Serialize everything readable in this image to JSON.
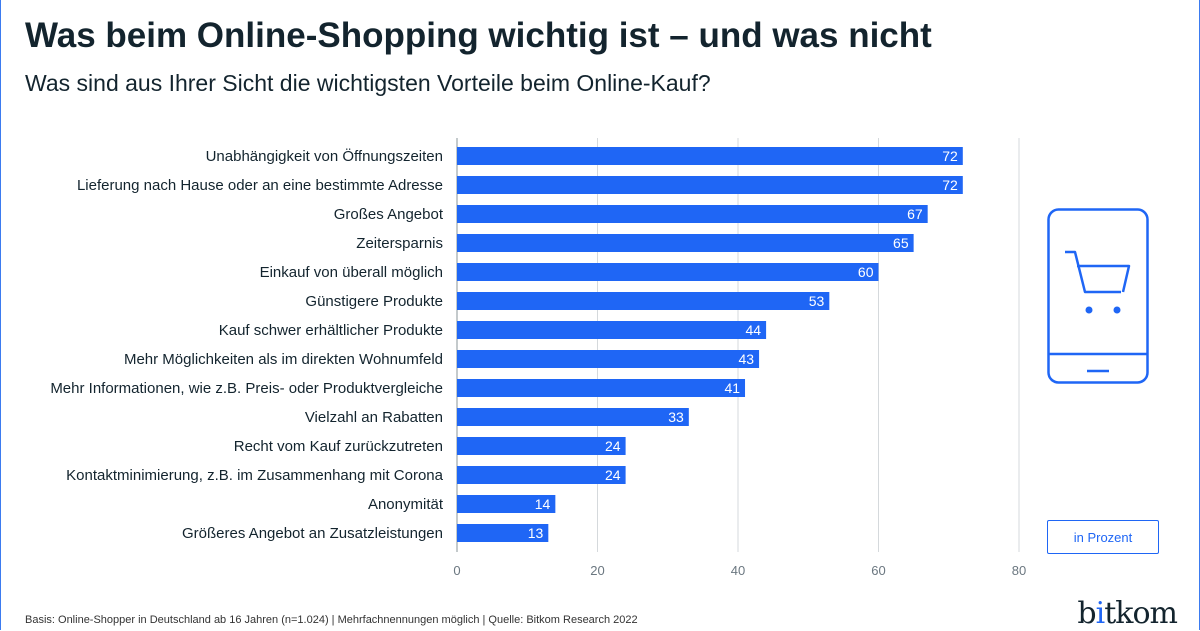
{
  "title": "Was beim Online-Shopping wichtig ist – und was nicht",
  "subtitle": "Was sind aus Ihrer Sicht die wichtigsten Vorteile beim Online-Kauf?",
  "unit_label": "in Prozent",
  "footer": "Basis: Online-Shopper in Deutschland ab 16 Jahren (n=1.024) | Mehrfachnennungen möglich | Quelle: Bitkom Research 2022",
  "logo": "bitkom",
  "icon": "smartphone-shopping-cart-icon",
  "colors": {
    "bar": "#1f66f5",
    "grid": "#d5d9dc",
    "text": "#13242e"
  },
  "chart_data": {
    "type": "bar",
    "orientation": "horizontal",
    "categories": [
      "Unabhängigkeit von Öffnungszeiten",
      "Lieferung nach Hause oder an eine bestimmte Adresse",
      "Großes Angebot",
      "Zeitersparnis",
      "Einkauf von überall möglich",
      "Günstigere Produkte",
      "Kauf schwer erhältlicher Produkte",
      "Mehr Möglichkeiten als im direkten Wohnumfeld",
      "Mehr Informationen, wie z.B. Preis- oder Produktvergleiche",
      "Vielzahl an Rabatten",
      "Recht vom Kauf zurückzutreten",
      "Kontaktminimierung, z.B. im Zusammenhang mit Corona",
      "Anonymität",
      "Größeres Angebot an Zusatzleistungen"
    ],
    "values": [
      72,
      72,
      67,
      65,
      60,
      53,
      44,
      43,
      41,
      33,
      24,
      24,
      14,
      13
    ],
    "xlim": [
      0,
      80
    ],
    "xticks": [
      0,
      20,
      40,
      60,
      80
    ],
    "grid": true,
    "xlabel": "",
    "ylabel": ""
  }
}
